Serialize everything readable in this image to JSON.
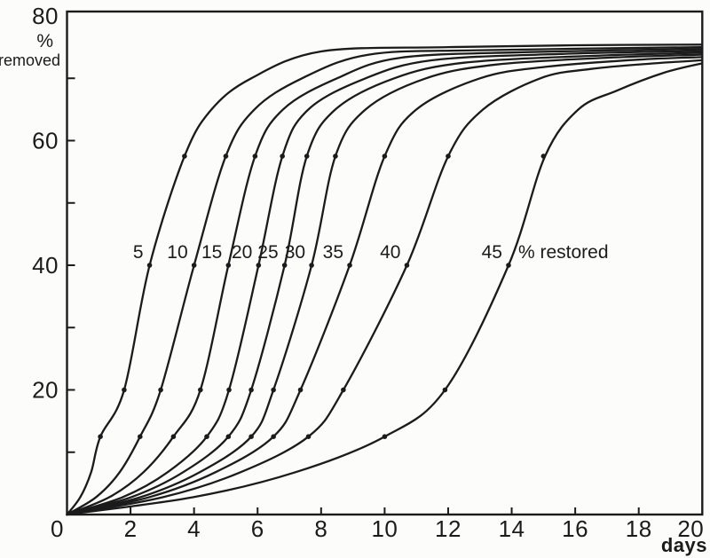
{
  "figure": {
    "background": "#fcfcfa",
    "ink": "#1b1b1b"
  },
  "chart_data": {
    "type": "line",
    "title": "",
    "xlabel": "days",
    "ylabel": "% removed",
    "ylabel_lines": [
      "%",
      "removed"
    ],
    "xlim": [
      0,
      20
    ],
    "ylim": [
      0,
      80
    ],
    "x_tick_labels": [
      0,
      2,
      4,
      6,
      8,
      10,
      12,
      14,
      16,
      18,
      20
    ],
    "y_tick_lines": [
      10,
      20,
      30,
      40,
      50,
      60,
      70
    ],
    "y_tick_labels": [
      20,
      40,
      60,
      80
    ],
    "grid": false,
    "legend": "inline curve labels at 40% level",
    "annotation_suffix": "% restored",
    "marker_levels": [
      12.5,
      20,
      40,
      57.5
    ],
    "series": [
      {
        "name": "5",
        "points": [
          [
            0,
            0
          ],
          [
            0.42,
            2.8
          ],
          [
            0.76,
            6.8
          ],
          [
            1.05,
            12.5
          ],
          [
            1.8,
            20
          ],
          [
            2.6,
            40
          ],
          [
            3.7,
            57.5
          ],
          [
            4.55,
            65
          ],
          [
            5.8,
            70
          ],
          [
            8,
            74.3
          ],
          [
            12,
            75
          ],
          [
            16,
            75.3
          ],
          [
            20,
            75.4
          ]
        ],
        "markers": [
          [
            1.05,
            12.5
          ],
          [
            1.8,
            20
          ],
          [
            2.6,
            40
          ],
          [
            3.7,
            57.5
          ]
        ]
      },
      {
        "name": "10",
        "points": [
          [
            0,
            0
          ],
          [
            0.92,
            2.8
          ],
          [
            1.66,
            6.8
          ],
          [
            2.3,
            12.5
          ],
          [
            2.95,
            20
          ],
          [
            4,
            40
          ],
          [
            5,
            57.5
          ],
          [
            5.9,
            65
          ],
          [
            7.4,
            70
          ],
          [
            9.5,
            73.8
          ],
          [
            13,
            74.5
          ],
          [
            20,
            75
          ]
        ],
        "markers": [
          [
            2.3,
            12.5
          ],
          [
            2.95,
            20
          ],
          [
            4,
            40
          ],
          [
            5,
            57.5
          ]
        ]
      },
      {
        "name": "15",
        "points": [
          [
            0,
            0
          ],
          [
            1.34,
            2.8
          ],
          [
            2.41,
            6.8
          ],
          [
            3.35,
            12.5
          ],
          [
            4.2,
            20
          ],
          [
            5.08,
            40
          ],
          [
            5.92,
            57.5
          ],
          [
            6.8,
            65
          ],
          [
            8.5,
            70
          ],
          [
            10.5,
            73.3
          ],
          [
            14.5,
            74.2
          ],
          [
            20,
            74.7
          ]
        ],
        "markers": [
          [
            3.35,
            12.5
          ],
          [
            4.2,
            20
          ],
          [
            5.08,
            40
          ],
          [
            5.92,
            57.5
          ]
        ]
      },
      {
        "name": "20",
        "points": [
          [
            0,
            0
          ],
          [
            1.76,
            2.8
          ],
          [
            3.17,
            6.8
          ],
          [
            4.4,
            12.5
          ],
          [
            5.1,
            20
          ],
          [
            6.03,
            40
          ],
          [
            6.78,
            57.5
          ],
          [
            7.6,
            65
          ],
          [
            9.4,
            70
          ],
          [
            11.5,
            72.9
          ],
          [
            15.5,
            73.9
          ],
          [
            20,
            74.4
          ]
        ],
        "markers": [
          [
            4.4,
            12.5
          ],
          [
            5.1,
            20
          ],
          [
            6.03,
            40
          ],
          [
            6.78,
            57.5
          ]
        ]
      },
      {
        "name": "25",
        "points": [
          [
            0,
            0
          ],
          [
            2.03,
            2.8
          ],
          [
            3.66,
            6.8
          ],
          [
            5.08,
            12.5
          ],
          [
            5.8,
            20
          ],
          [
            6.85,
            40
          ],
          [
            7.55,
            57.5
          ],
          [
            8.45,
            65
          ],
          [
            10.3,
            70
          ],
          [
            12.5,
            72.5
          ],
          [
            16.5,
            73.6
          ],
          [
            20,
            74.1
          ]
        ],
        "markers": [
          [
            5.08,
            12.5
          ],
          [
            5.8,
            20
          ],
          [
            6.85,
            40
          ],
          [
            7.55,
            57.5
          ]
        ]
      },
      {
        "name": "30",
        "points": [
          [
            0,
            0
          ],
          [
            2.32,
            2.8
          ],
          [
            4.18,
            6.8
          ],
          [
            5.8,
            12.5
          ],
          [
            6.5,
            20
          ],
          [
            7.7,
            40
          ],
          [
            8.45,
            57.5
          ],
          [
            9.4,
            65
          ],
          [
            11.3,
            70
          ],
          [
            13.5,
            72.2
          ],
          [
            17,
            73.3
          ],
          [
            20,
            73.8
          ]
        ],
        "markers": [
          [
            5.8,
            12.5
          ],
          [
            6.5,
            20
          ],
          [
            7.7,
            40
          ],
          [
            8.45,
            57.5
          ]
        ]
      },
      {
        "name": "35",
        "points": [
          [
            0,
            0
          ],
          [
            2.6,
            2.8
          ],
          [
            4.68,
            6.8
          ],
          [
            6.5,
            12.5
          ],
          [
            7.35,
            20
          ],
          [
            8.9,
            40
          ],
          [
            10,
            57.5
          ],
          [
            11,
            65
          ],
          [
            13,
            70
          ],
          [
            15,
            71.8
          ],
          [
            18,
            73
          ],
          [
            20,
            73.4
          ]
        ],
        "markers": [
          [
            6.5,
            12.5
          ],
          [
            7.35,
            20
          ],
          [
            8.9,
            40
          ],
          [
            10,
            57.5
          ]
        ]
      },
      {
        "name": "40",
        "points": [
          [
            0,
            0
          ],
          [
            3.04,
            2.8
          ],
          [
            5.47,
            6.8
          ],
          [
            7.6,
            12.5
          ],
          [
            8.7,
            20
          ],
          [
            10.7,
            40
          ],
          [
            12,
            57.5
          ],
          [
            13.1,
            65
          ],
          [
            14.9,
            70
          ],
          [
            16.5,
            71.5
          ],
          [
            18.5,
            72.4
          ],
          [
            20,
            72.9
          ]
        ],
        "markers": [
          [
            7.6,
            12.5
          ],
          [
            8.7,
            20
          ],
          [
            10.7,
            40
          ],
          [
            12,
            57.5
          ]
        ]
      },
      {
        "name": "45",
        "points": [
          [
            0,
            0
          ],
          [
            4,
            2.8
          ],
          [
            7.2,
            6.8
          ],
          [
            10,
            12.5
          ],
          [
            11.9,
            20
          ],
          [
            13.9,
            40
          ],
          [
            15.05,
            57.5
          ],
          [
            16.1,
            65
          ],
          [
            17.3,
            68
          ],
          [
            18.8,
            70.9
          ],
          [
            20,
            72.4
          ]
        ],
        "markers": [
          [
            10,
            12.5
          ],
          [
            11.9,
            20
          ],
          [
            13.9,
            40
          ],
          [
            15,
            57.5
          ]
        ]
      }
    ]
  }
}
